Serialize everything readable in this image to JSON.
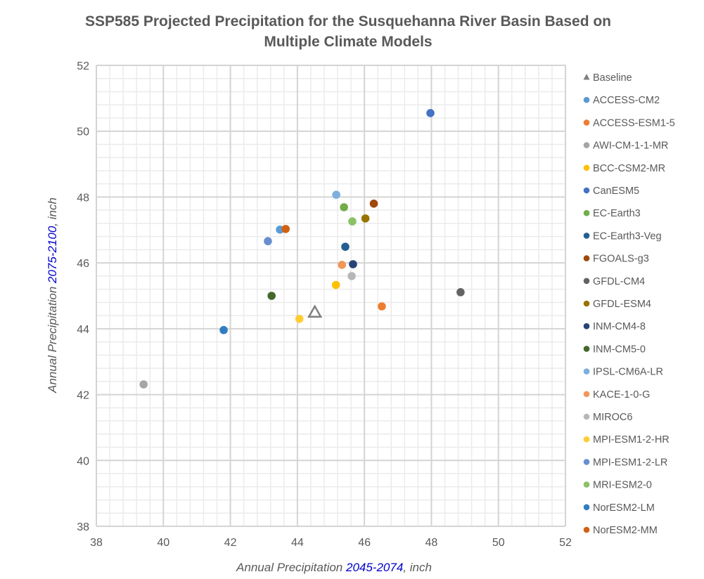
{
  "chart_data": {
    "type": "scatter",
    "title_line1": "SSP585 Projected Precipitation for the Susquehanna River Basin Based on",
    "title_line2": "Multiple Climate Models",
    "xlabel": {
      "prefix": "Annual Precipitation ",
      "highlight": "2045-2074",
      "suffix": ", inch"
    },
    "ylabel": {
      "prefix": "Annual Precipitation ",
      "highlight": "2075-2100",
      "suffix": ", inch"
    },
    "xlim": [
      38,
      52
    ],
    "ylim": [
      38,
      52
    ],
    "xticks": [
      38,
      40,
      42,
      44,
      46,
      48,
      50,
      52
    ],
    "yticks": [
      38,
      40,
      42,
      44,
      46,
      48,
      50,
      52
    ],
    "grid": true,
    "minor_grid_step": 0.4,
    "legend_position": "right",
    "highlight_color": "#0000CC",
    "series": [
      {
        "name": "Baseline",
        "marker": "triangle",
        "color": "#7F7F7F",
        "x": 44.52,
        "y": 44.49
      },
      {
        "name": "ACCESS-CM2",
        "color": "#5B9BD5",
        "x": 43.48,
        "y": 47.01
      },
      {
        "name": "ACCESS-ESM1-5",
        "color": "#ED7D31",
        "x": 46.52,
        "y": 44.68
      },
      {
        "name": "AWI-CM-1-1-MR",
        "color": "#A5A5A5",
        "x": 39.41,
        "y": 42.31
      },
      {
        "name": "BCC-CSM2-MR",
        "color": "#FFC000",
        "x": 45.15,
        "y": 45.33
      },
      {
        "name": "CanESM5",
        "color": "#4472C4",
        "x": 47.97,
        "y": 50.55
      },
      {
        "name": "EC-Earth3",
        "color": "#70AD47",
        "x": 45.39,
        "y": 47.69
      },
      {
        "name": "EC-Earth3-Veg",
        "color": "#255E91",
        "x": 45.43,
        "y": 46.49
      },
      {
        "name": "FGOALS-g3",
        "color": "#9E480E",
        "x": 46.28,
        "y": 47.8
      },
      {
        "name": "GFDL-CM4",
        "color": "#636363",
        "x": 48.87,
        "y": 45.11
      },
      {
        "name": "GFDL-ESM4",
        "color": "#997300",
        "x": 46.03,
        "y": 47.35
      },
      {
        "name": "INM-CM4-8",
        "color": "#264478",
        "x": 45.66,
        "y": 45.96
      },
      {
        "name": "INM-CM5-0",
        "color": "#43682B",
        "x": 43.23,
        "y": 45.0
      },
      {
        "name": "IPSL-CM6A-LR",
        "color": "#7CAFDD",
        "x": 45.16,
        "y": 48.07
      },
      {
        "name": "KACE-1-0-G",
        "color": "#F1975A",
        "x": 45.33,
        "y": 45.94
      },
      {
        "name": "MIROC6",
        "color": "#B7B7B7",
        "x": 45.62,
        "y": 45.6
      },
      {
        "name": "MPI-ESM1-2-HR",
        "color": "#FFCD33",
        "x": 44.06,
        "y": 44.3
      },
      {
        "name": "MPI-ESM1-2-LR",
        "color": "#698ED0",
        "x": 43.12,
        "y": 46.66
      },
      {
        "name": "MRI-ESM2-0",
        "color": "#8CC168",
        "x": 45.64,
        "y": 47.26
      },
      {
        "name": "NorESM2-LM",
        "color": "#327DC2",
        "x": 41.8,
        "y": 43.96
      },
      {
        "name": "NorESM2-MM",
        "color": "#D26012",
        "x": 43.65,
        "y": 47.03
      }
    ]
  }
}
